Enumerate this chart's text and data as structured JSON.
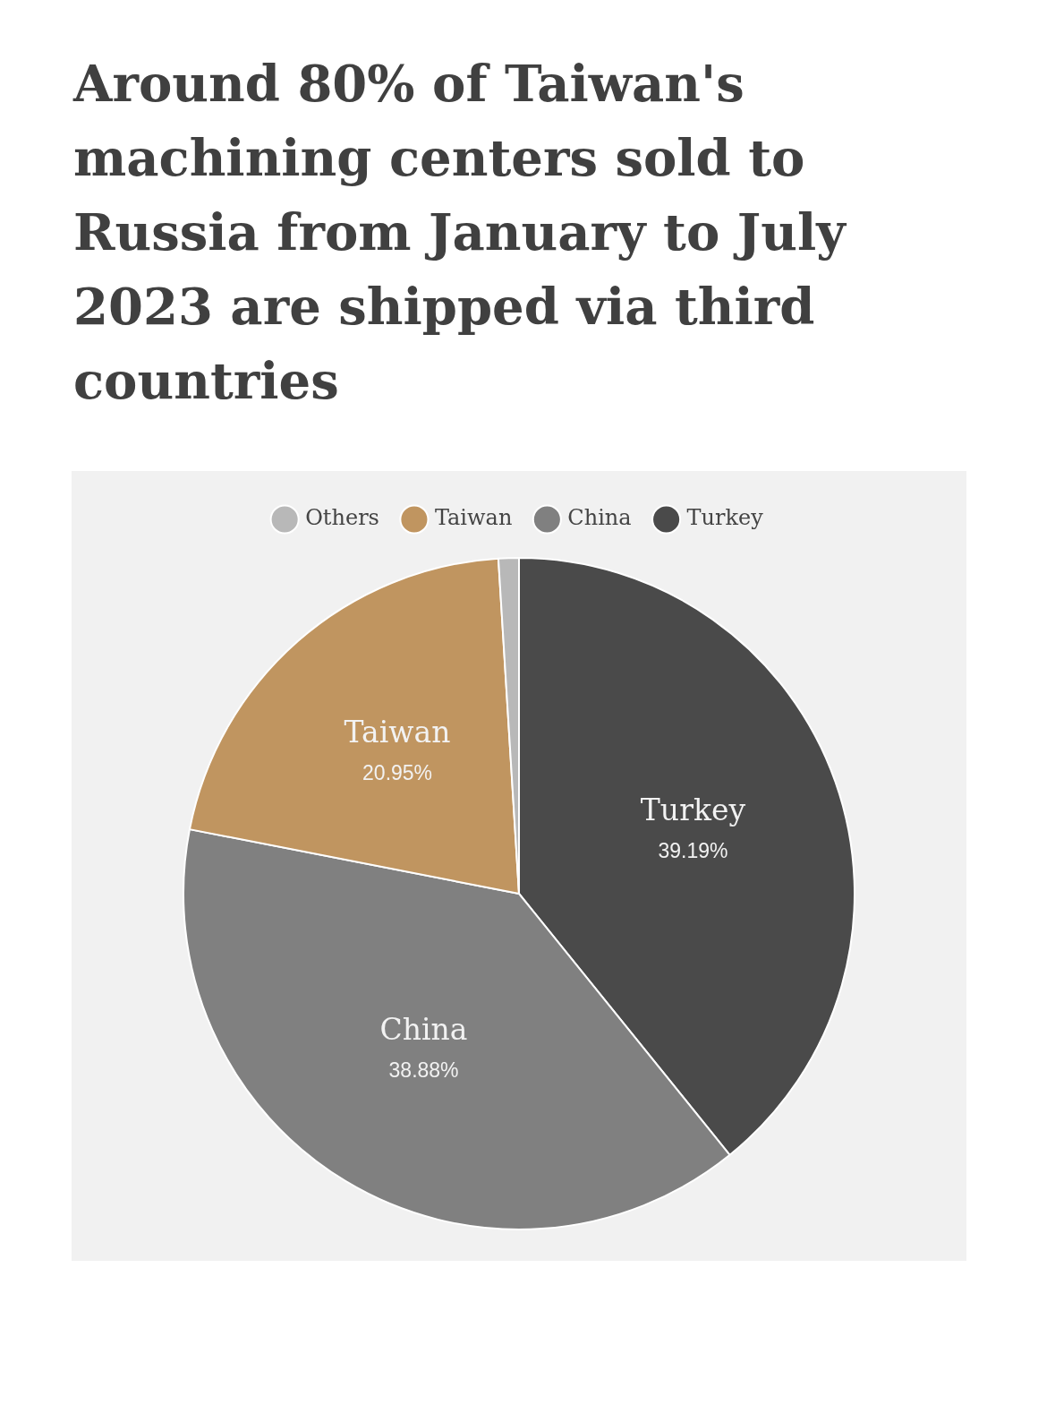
{
  "chart_data": {
    "type": "pie",
    "title": "Around 80% of Taiwan's machining centers sold to Russia from January to July 2023 are shipped via third countries",
    "categories": [
      "Others",
      "Taiwan",
      "China",
      "Turkey"
    ],
    "values": [
      0.98,
      20.95,
      38.88,
      39.19
    ],
    "colors": [
      "#b8b8b8",
      "#c09560",
      "#808080",
      "#4a4a4a"
    ],
    "value_labels": [
      null,
      "20.95%",
      "38.88%",
      "39.19%"
    ],
    "legend": "top"
  }
}
